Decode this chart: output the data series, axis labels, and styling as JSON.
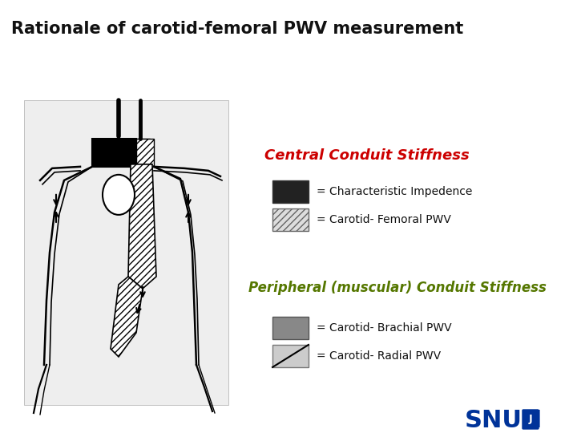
{
  "title": "Rationale of carotid-femoral PWV measurement",
  "title_fontsize": 15,
  "title_bg_color": "#d8e8f4",
  "bg_color": "#ffffff",
  "central_title": "Central Conduit Stiffness",
  "central_title_color": "#cc0000",
  "central_title_fontsize": 13,
  "legend1_label1": "= Characteristic Impedence",
  "legend1_label2": "= Carotid- Femoral PWV",
  "peripheral_title": "Peripheral (muscular) Conduit Stiffness",
  "peripheral_title_color": "#557700",
  "peripheral_title_fontsize": 12,
  "legend2_label1": "= Carotid- Brachial PWV",
  "legend2_label2": "= Carotid- Radial PWV",
  "snuh_color": "#003399",
  "legend_text_fontsize": 10,
  "legend_text_color": "#111111"
}
